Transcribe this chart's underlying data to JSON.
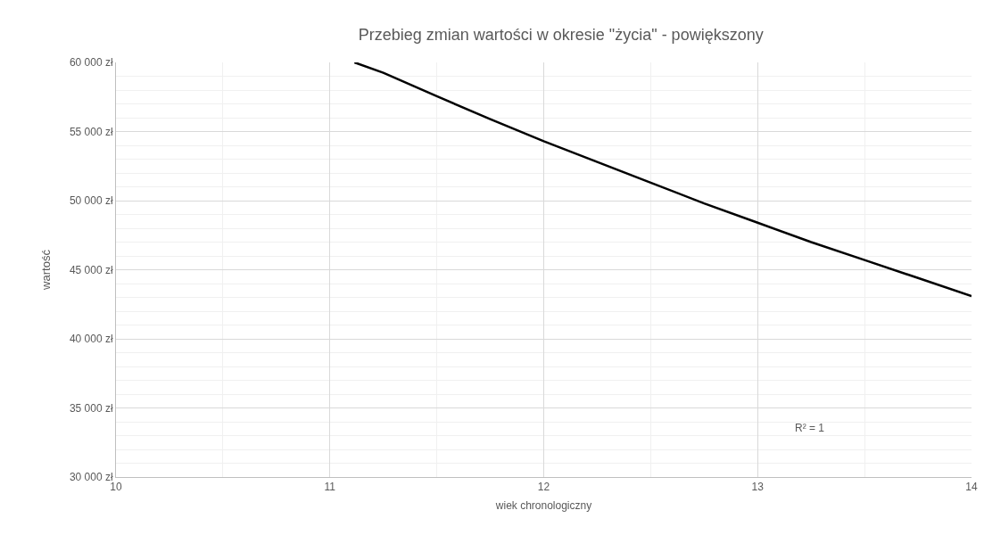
{
  "chart_data": {
    "type": "line",
    "title": "Przebieg zmian wartości w okresie \"życia\" - powiększony",
    "xlabel": "wiek chronologiczny",
    "ylabel": "wartość",
    "x": [
      11.115,
      11.25,
      11.5,
      11.75,
      12,
      12.25,
      12.5,
      12.75,
      13,
      13.25,
      13.5,
      13.75,
      14
    ],
    "series": [
      {
        "color": "#000000",
        "values": [
          60000,
          59250,
          57550,
          55900,
          54300,
          52800,
          51300,
          49800,
          48400,
          47000,
          45700,
          44400,
          43100
        ]
      }
    ],
    "xlim": [
      10,
      14
    ],
    "xticks": [
      10,
      11,
      12,
      13,
      14
    ],
    "ylim": [
      30000,
      60000
    ],
    "yticks": [
      {
        "value": 30000,
        "label": "30 000 zł"
      },
      {
        "value": 35000,
        "label": "35 000 zł"
      },
      {
        "value": 40000,
        "label": "40 000 zł"
      },
      {
        "value": 45000,
        "label": "45 000 zł"
      },
      {
        "value": 50000,
        "label": "50 000 zł"
      },
      {
        "value": 55000,
        "label": "55 000 zł"
      },
      {
        "value": 60000,
        "label": "60 000 zł"
      }
    ],
    "annotations": [
      "R² = 1"
    ],
    "grid": true,
    "marker": "none",
    "line_style": "solid"
  }
}
